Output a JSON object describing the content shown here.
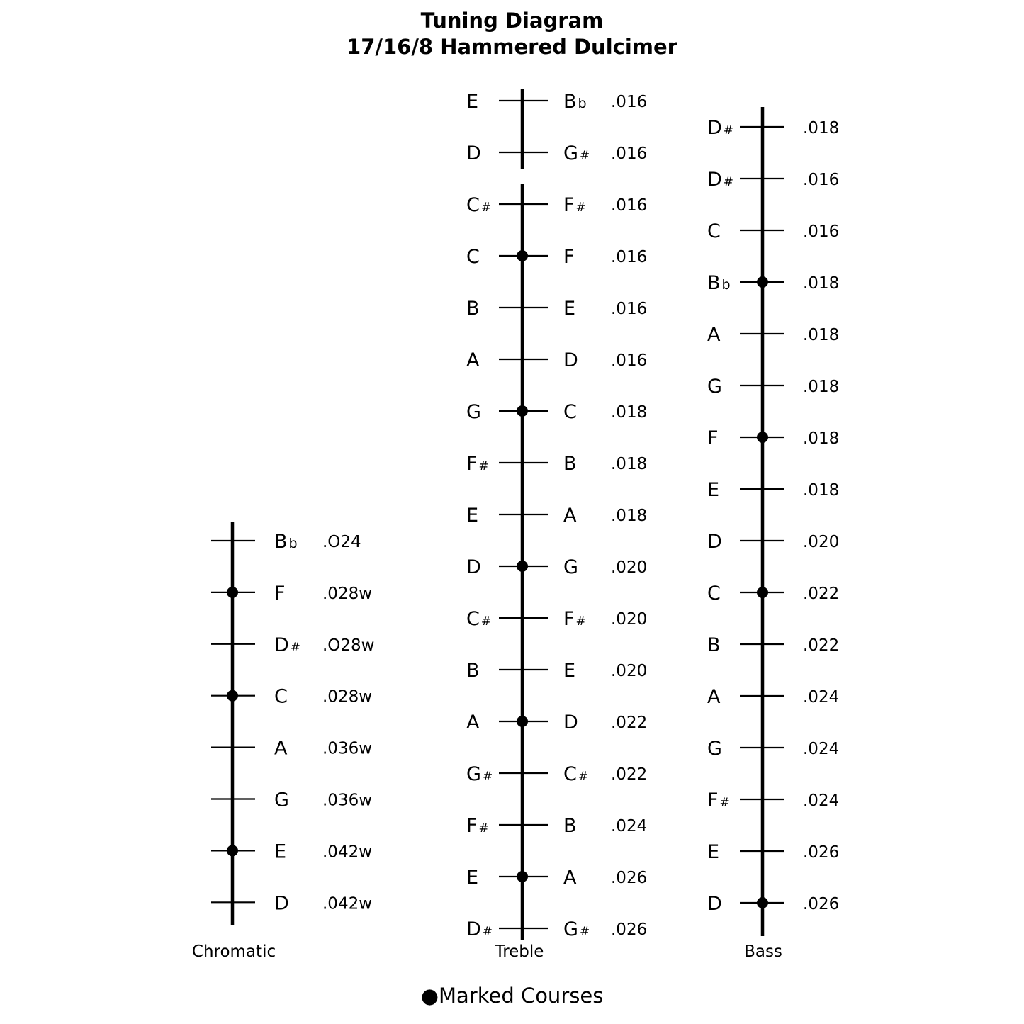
{
  "title": {
    "line1": "Tuning Diagram",
    "line2": "17/16/8 Hammered Dulcimer"
  },
  "legend": {
    "marker": "●",
    "label": "Marked Courses"
  },
  "bridges": {
    "chromatic": {
      "label": "Chromatic",
      "rows": [
        {
          "note": "Bb",
          "gauge": ".O24",
          "marked": false
        },
        {
          "note": "F",
          "gauge": ".028w",
          "marked": true
        },
        {
          "note": "D#",
          "gauge": ".O28w",
          "marked": false
        },
        {
          "note": "C",
          "gauge": ".028w",
          "marked": true
        },
        {
          "note": "A",
          "gauge": ".036w",
          "marked": false
        },
        {
          "note": "G",
          "gauge": ".036w",
          "marked": false
        },
        {
          "note": "E",
          "gauge": ".042w",
          "marked": true
        },
        {
          "note": "D",
          "gauge": ".042w",
          "marked": false
        }
      ]
    },
    "treble": {
      "label": "Treble",
      "rows": [
        {
          "left": "E",
          "right": "Bb",
          "gauge": ".016",
          "marked": false
        },
        {
          "left": "D",
          "right": "G#",
          "gauge": ".016",
          "marked": false
        },
        {
          "left": "C#",
          "right": "F#",
          "gauge": ".016",
          "marked": false
        },
        {
          "left": "C",
          "right": "F",
          "gauge": ".016",
          "marked": true
        },
        {
          "left": "B",
          "right": "E",
          "gauge": ".016",
          "marked": false
        },
        {
          "left": "A",
          "right": "D",
          "gauge": ".016",
          "marked": false
        },
        {
          "left": "G",
          "right": "C",
          "gauge": ".018",
          "marked": true
        },
        {
          "left": "F#",
          "right": "B",
          "gauge": ".018",
          "marked": false
        },
        {
          "left": "E",
          "right": "A",
          "gauge": ".018",
          "marked": false
        },
        {
          "left": "D",
          "right": "G",
          "gauge": ".020",
          "marked": true
        },
        {
          "left": "C#",
          "right": "F#",
          "gauge": ".020",
          "marked": false
        },
        {
          "left": "B",
          "right": "E",
          "gauge": ".020",
          "marked": false
        },
        {
          "left": "A",
          "right": "D",
          "gauge": ".022",
          "marked": true
        },
        {
          "left": "G#",
          "right": "C#",
          "gauge": ".022",
          "marked": false
        },
        {
          "left": "F#",
          "right": "B",
          "gauge": ".024",
          "marked": false
        },
        {
          "left": "E",
          "right": "A",
          "gauge": ".026",
          "marked": true
        },
        {
          "left": "D#",
          "right": "G#",
          "gauge": ".026",
          "marked": false
        }
      ]
    },
    "bass": {
      "label": "Bass",
      "rows": [
        {
          "note": "D#",
          "gauge": ".018",
          "marked": false
        },
        {
          "note": "D#",
          "gauge": ".016",
          "marked": false
        },
        {
          "note": "C",
          "gauge": ".016",
          "marked": false
        },
        {
          "note": "Bb",
          "gauge": ".018",
          "marked": true
        },
        {
          "note": "A",
          "gauge": ".018",
          "marked": false
        },
        {
          "note": "G",
          "gauge": ".018",
          "marked": false
        },
        {
          "note": "F",
          "gauge": ".018",
          "marked": true
        },
        {
          "note": "E",
          "gauge": ".018",
          "marked": false
        },
        {
          "note": "D",
          "gauge": ".020",
          "marked": false
        },
        {
          "note": "C",
          "gauge": ".022",
          "marked": true
        },
        {
          "note": "B",
          "gauge": ".022",
          "marked": false
        },
        {
          "note": "A",
          "gauge": ".024",
          "marked": false
        },
        {
          "note": "G",
          "gauge": ".024",
          "marked": false
        },
        {
          "note": "F#",
          "gauge": ".024",
          "marked": false
        },
        {
          "note": "E",
          "gauge": ".026",
          "marked": false
        },
        {
          "note": "D",
          "gauge": ".026",
          "marked": true
        }
      ]
    }
  }
}
